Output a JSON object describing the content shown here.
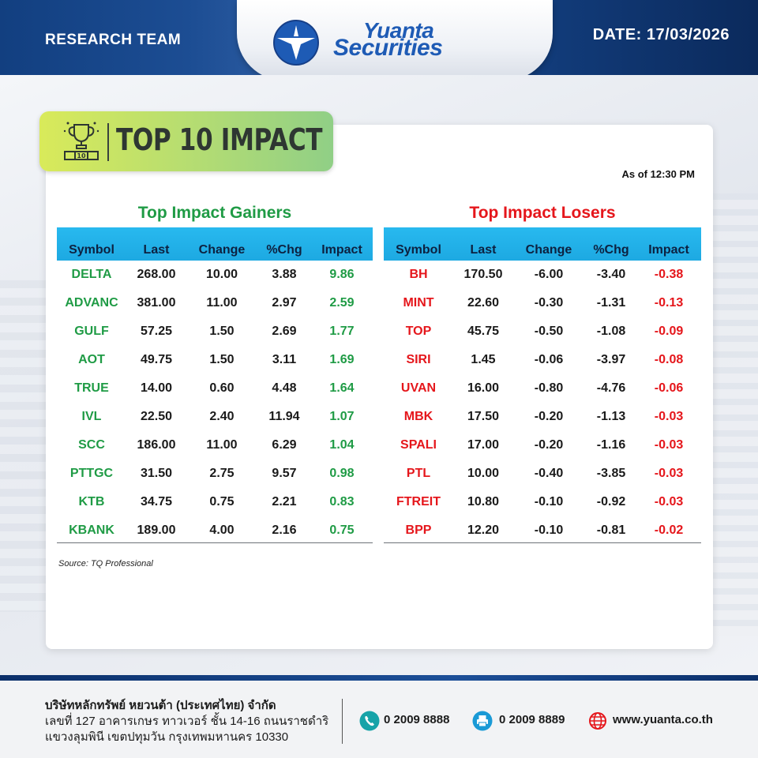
{
  "header": {
    "left_label": "RESEARCH TEAM",
    "brand_line1": "Yuanta",
    "brand_line2": "Securities",
    "date_text": "DATE: 17/03/2026",
    "colors": {
      "navy": "#0f3a78",
      "brand_blue": "#1e5bb5"
    }
  },
  "banner": {
    "title": "TOP 10 IMPACT",
    "icon": "trophy-podium-icon",
    "trophy_number": "10"
  },
  "as_of": "As of 12:30 PM",
  "gainers": {
    "title": "Top Impact Gainers",
    "color": "#1f9b45",
    "columns": [
      "Symbol",
      "Last",
      "Change",
      "%Chg",
      "Impact"
    ],
    "rows": [
      [
        "DELTA",
        "268.00",
        "10.00",
        "3.88",
        "9.86"
      ],
      [
        "ADVANC",
        "381.00",
        "11.00",
        "2.97",
        "2.59"
      ],
      [
        "GULF",
        "57.25",
        "1.50",
        "2.69",
        "1.77"
      ],
      [
        "AOT",
        "49.75",
        "1.50",
        "3.11",
        "1.69"
      ],
      [
        "TRUE",
        "14.00",
        "0.60",
        "4.48",
        "1.64"
      ],
      [
        "IVL",
        "22.50",
        "2.40",
        "11.94",
        "1.07"
      ],
      [
        "SCC",
        "186.00",
        "11.00",
        "6.29",
        "1.04"
      ],
      [
        "PTTGC",
        "31.50",
        "2.75",
        "9.57",
        "0.98"
      ],
      [
        "KTB",
        "34.75",
        "0.75",
        "2.21",
        "0.83"
      ],
      [
        "KBANK",
        "189.00",
        "4.00",
        "2.16",
        "0.75"
      ]
    ]
  },
  "losers": {
    "title": "Top Impact Losers",
    "color": "#e5161b",
    "columns": [
      "Symbol",
      "Last",
      "Change",
      "%Chg",
      "Impact"
    ],
    "rows": [
      [
        "BH",
        "170.50",
        "-6.00",
        "-3.40",
        "-0.38"
      ],
      [
        "MINT",
        "22.60",
        "-0.30",
        "-1.31",
        "-0.13"
      ],
      [
        "TOP",
        "45.75",
        "-0.50",
        "-1.08",
        "-0.09"
      ],
      [
        "SIRI",
        "1.45",
        "-0.06",
        "-3.97",
        "-0.08"
      ],
      [
        "UVAN",
        "16.00",
        "-0.80",
        "-4.76",
        "-0.06"
      ],
      [
        "MBK",
        "17.50",
        "-0.20",
        "-1.13",
        "-0.03"
      ],
      [
        "SPALI",
        "17.00",
        "-0.20",
        "-1.16",
        "-0.03"
      ],
      [
        "PTL",
        "10.00",
        "-0.40",
        "-3.85",
        "-0.03"
      ],
      [
        "FTREIT",
        "10.80",
        "-0.10",
        "-0.92",
        "-0.03"
      ],
      [
        "BPP",
        "12.20",
        "-0.10",
        "-0.81",
        "-0.02"
      ]
    ]
  },
  "source": "Source: TQ Professional",
  "footer": {
    "company": "บริษัทหลักทรัพย์ หยวนต้า (ประเทศไทย) จำกัด",
    "address_line1": "เลขที่ 127 อาคารเกษร ทาวเวอร์ ชั้น 14-16 ถนนราชดำริ",
    "address_line2": "แขวงลุมพินี เขตปทุมวัน กรุงเทพมหานคร 10330",
    "phone": "0 2009 8888",
    "fax": "0 2009 8889",
    "website": "www.yuanta.co.th",
    "icons": [
      "phone-icon",
      "fax-icon",
      "globe-icon"
    ],
    "colors": {
      "phone": "#16a3a8",
      "fax": "#1a9ad6",
      "web": "#e5161b"
    }
  }
}
